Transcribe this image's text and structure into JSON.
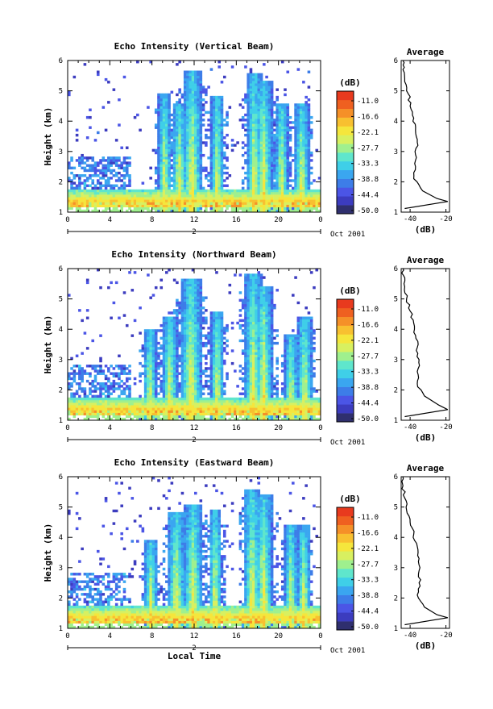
{
  "chart_data": [
    {
      "type": "heatmap",
      "title": "Echo Intensity (Vertical Beam)",
      "xlabel": "",
      "ylabel": "Height (km)",
      "xlim": [
        0,
        24
      ],
      "ylim": [
        1,
        6
      ],
      "x_ticks": [
        "0",
        "4",
        "8",
        "12",
        "16",
        "20",
        "0"
      ],
      "y_ticks": [
        "1",
        "2",
        "3",
        "4",
        "5",
        "6"
      ],
      "date_day": "2",
      "date_label": "Oct 2001",
      "colorbar_unit": "(dB)",
      "colorbar_ticks": [
        "-11.0",
        "-16.6",
        "-22.1",
        "-27.7",
        "-33.3",
        "-38.8",
        "-44.4",
        "-50.0"
      ],
      "profile": {
        "title": "Average",
        "xlabel": "(dB)",
        "x_ticks": [
          "-40",
          "-20"
        ],
        "y_ticks": [
          "1",
          "2",
          "3",
          "4",
          "5",
          "6"
        ],
        "xlim": [
          -45,
          -18
        ],
        "points": [
          [
            -19,
            1.35
          ],
          [
            -25,
            1.45
          ],
          [
            -33,
            1.7
          ],
          [
            -38,
            2.1
          ],
          [
            -37,
            2.5
          ],
          [
            -37,
            2.9
          ],
          [
            -36,
            3.3
          ],
          [
            -37,
            3.7
          ],
          [
            -38,
            4.1
          ],
          [
            -40,
            4.5
          ],
          [
            -41,
            4.9
          ],
          [
            -43,
            5.3
          ],
          [
            -44,
            5.7
          ],
          [
            -44,
            6.0
          ]
        ]
      }
    },
    {
      "type": "heatmap",
      "title": "Echo Intensity (Northward Beam)",
      "xlabel": "",
      "ylabel": "Height (km)",
      "xlim": [
        0,
        24
      ],
      "ylim": [
        1,
        6
      ],
      "x_ticks": [
        "0",
        "4",
        "8",
        "12",
        "16",
        "20",
        "0"
      ],
      "y_ticks": [
        "1",
        "2",
        "3",
        "4",
        "5",
        "6"
      ],
      "date_day": "2",
      "date_label": "Oct 2001",
      "colorbar_unit": "(dB)",
      "colorbar_ticks": [
        "-11.0",
        "-16.6",
        "-22.1",
        "-27.7",
        "-33.3",
        "-38.8",
        "-44.4",
        "-50.0"
      ],
      "profile": {
        "title": "Average",
        "xlabel": "(dB)",
        "x_ticks": [
          "-40",
          "-20"
        ],
        "y_ticks": [
          "1",
          "2",
          "3",
          "4",
          "5",
          "6"
        ],
        "xlim": [
          -45,
          -18
        ],
        "points": [
          [
            -19,
            1.35
          ],
          [
            -24,
            1.5
          ],
          [
            -32,
            1.8
          ],
          [
            -36,
            2.2
          ],
          [
            -36,
            2.6
          ],
          [
            -35,
            3.0
          ],
          [
            -36,
            3.4
          ],
          [
            -37,
            3.8
          ],
          [
            -38,
            4.2
          ],
          [
            -40,
            4.6
          ],
          [
            -42,
            5.0
          ],
          [
            -43,
            5.4
          ],
          [
            -44,
            5.8
          ],
          [
            -44,
            6.0
          ]
        ]
      }
    },
    {
      "type": "heatmap",
      "title": "Echo Intensity (Eastward Beam)",
      "xlabel": "Local Time",
      "ylabel": "Height (km)",
      "xlim": [
        0,
        24
      ],
      "ylim": [
        1,
        6
      ],
      "x_ticks": [
        "0",
        "4",
        "8",
        "12",
        "16",
        "20",
        "0"
      ],
      "y_ticks": [
        "1",
        "2",
        "3",
        "4",
        "5",
        "6"
      ],
      "date_day": "2",
      "date_label": "Oct 2001",
      "colorbar_unit": "(dB)",
      "colorbar_ticks": [
        "-11.0",
        "-16.6",
        "-22.1",
        "-27.7",
        "-33.3",
        "-38.8",
        "-44.4",
        "-50.0"
      ],
      "profile": {
        "title": "Average",
        "xlabel": "(dB)",
        "x_ticks": [
          "-40",
          "-20"
        ],
        "y_ticks": [
          "1",
          "2",
          "3",
          "4",
          "5",
          "6"
        ],
        "xlim": [
          -45,
          -18
        ],
        "points": [
          [
            -19,
            1.35
          ],
          [
            -25,
            1.45
          ],
          [
            -32,
            1.7
          ],
          [
            -36,
            2.1
          ],
          [
            -35,
            2.5
          ],
          [
            -35,
            2.9
          ],
          [
            -35,
            3.3
          ],
          [
            -36,
            3.7
          ],
          [
            -38,
            4.1
          ],
          [
            -40,
            4.5
          ],
          [
            -42,
            4.9
          ],
          [
            -43,
            5.3
          ],
          [
            -44,
            5.7
          ],
          [
            -44,
            6.0
          ]
        ]
      }
    }
  ]
}
